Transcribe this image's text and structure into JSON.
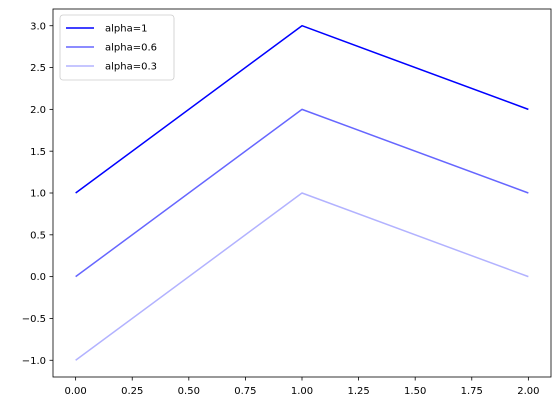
{
  "chart_data": {
    "type": "line",
    "title": "",
    "xlabel": "",
    "ylabel": "",
    "xlim": [
      -0.1,
      2.1
    ],
    "ylim": [
      -1.2,
      3.2
    ],
    "xticks": [
      0.0,
      0.25,
      0.5,
      0.75,
      1.0,
      1.25,
      1.5,
      1.75,
      2.0
    ],
    "xtick_labels": [
      "0.00",
      "0.25",
      "0.50",
      "0.75",
      "1.00",
      "1.25",
      "1.50",
      "1.75",
      "2.00"
    ],
    "yticks": [
      -1.0,
      -0.5,
      0.0,
      0.5,
      1.0,
      1.5,
      2.0,
      2.5,
      3.0
    ],
    "ytick_labels": [
      "−1.0",
      "−0.5",
      "0.0",
      "0.5",
      "1.0",
      "1.5",
      "2.0",
      "2.5",
      "3.0"
    ],
    "grid": false,
    "legend_position": "top-left",
    "x": [
      0,
      1,
      2
    ],
    "series": [
      {
        "name": "alpha=1",
        "values": [
          1,
          3,
          2
        ],
        "color": "#0000ff",
        "alpha": 1.0
      },
      {
        "name": "alpha=0.6",
        "values": [
          0,
          2,
          1
        ],
        "color": "#0000ff",
        "alpha": 0.6
      },
      {
        "name": "alpha=0.3",
        "values": [
          -1,
          1,
          0
        ],
        "color": "#0000ff",
        "alpha": 0.3
      }
    ]
  }
}
